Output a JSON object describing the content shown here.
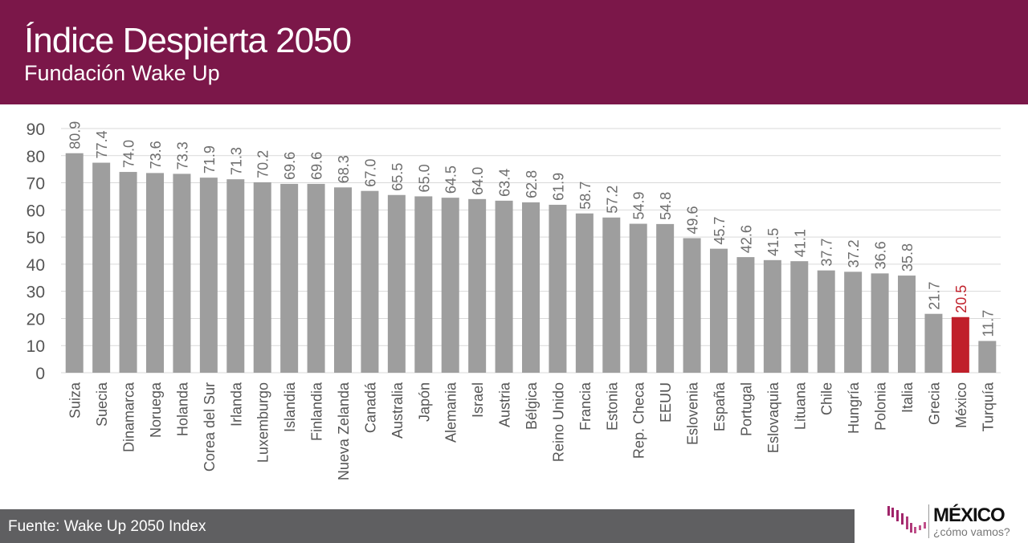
{
  "header": {
    "title": "Índice Despierta 2050",
    "subtitle": "Fundación Wake Up"
  },
  "footer": {
    "source": "Fuente: Wake Up 2050 Index"
  },
  "logo": {
    "main": "MÉXICO",
    "sub": "¿cómo vamos?"
  },
  "chart_data": {
    "type": "bar",
    "ylim": [
      0,
      90
    ],
    "yticks": [
      0,
      10,
      20,
      30,
      40,
      50,
      60,
      70,
      80,
      90
    ],
    "grid": true,
    "categories": [
      "Suiza",
      "Suecia",
      "Dinamarca",
      "Noruega",
      "Holanda",
      "Corea del Sur",
      "Irlanda",
      "Luxemburgo",
      "Islandia",
      "Finlandia",
      "Nueva Zelanda",
      "Canadá",
      "Australia",
      "Japón",
      "Alemania",
      "Israel",
      "Austria",
      "Bélgica",
      "Reino Unido",
      "Francia",
      "Estonia",
      "Rep. Checa",
      "EEUU",
      "Eslovenia",
      "España",
      "Portugal",
      "Eslovaquia",
      "Lituana",
      "Chile",
      "Hungría",
      "Polonia",
      "Italia",
      "Grecia",
      "México",
      "Turquía"
    ],
    "values": [
      80.9,
      77.4,
      74.0,
      73.6,
      73.3,
      71.9,
      71.3,
      70.2,
      69.6,
      69.6,
      68.3,
      67.0,
      65.5,
      65.0,
      64.5,
      64.0,
      63.4,
      62.8,
      61.9,
      58.7,
      57.2,
      54.9,
      54.8,
      49.6,
      45.7,
      42.6,
      41.5,
      41.1,
      37.7,
      37.2,
      36.6,
      35.8,
      21.7,
      20.5,
      11.7
    ],
    "highlight": "México",
    "colors": {
      "bar": "#9e9e9e",
      "highlight": "#c0202a",
      "label": "#6d6d6d",
      "grid": "#d9d9d9"
    }
  }
}
